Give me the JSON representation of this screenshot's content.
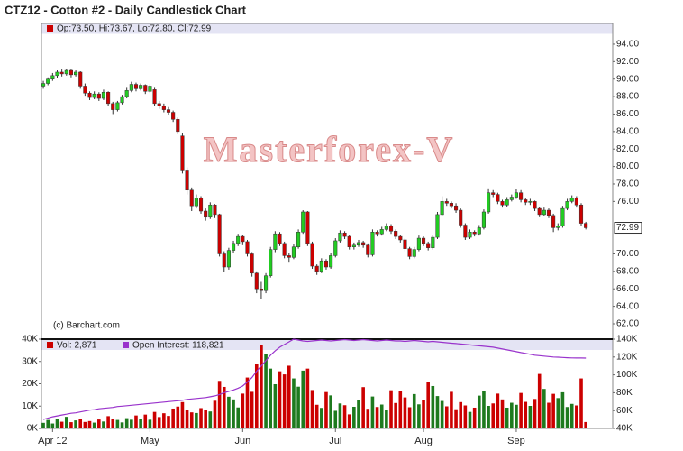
{
  "chart_data": {
    "type": "candlestick",
    "title": "CTZ12 - Cotton #2 - Daily Candlestick Chart",
    "legend": "Op:73.50, Hi:73.67, Lo:72.80, Cl:72.99",
    "credit": "(c) Barchart.com",
    "watermark": "Masterforex-V",
    "colors": {
      "up": "#22cc22",
      "down": "#cc0000",
      "outline": "#333333"
    },
    "xlim": [
      -0.4,
      122.8
    ],
    "xticks": [
      {
        "value": 2,
        "label": "Apr 12"
      },
      {
        "value": 23,
        "label": "May"
      },
      {
        "value": 43,
        "label": "Jun"
      },
      {
        "value": 63,
        "label": "Jul"
      },
      {
        "value": 82,
        "label": "Aug"
      },
      {
        "value": 102,
        "label": "Sep"
      }
    ],
    "ylim": [
      61.07,
      96.37
    ],
    "yticks": [
      {
        "value": 62,
        "label": "62.00"
      },
      {
        "value": 64,
        "label": "64.00"
      },
      {
        "value": 66,
        "label": "66.00"
      },
      {
        "value": 68,
        "label": "68.00"
      },
      {
        "value": 70,
        "label": "70.00"
      },
      {
        "value": 76,
        "label": "76.00"
      },
      {
        "value": 78,
        "label": "78.00"
      },
      {
        "value": 80,
        "label": "80.00"
      },
      {
        "value": 82,
        "label": "82.00"
      },
      {
        "value": 84,
        "label": "84.00"
      },
      {
        "value": 86,
        "label": "86.00"
      },
      {
        "value": 88,
        "label": "88.00"
      },
      {
        "value": 90,
        "label": "90.00"
      },
      {
        "value": 92,
        "label": "92.00"
      },
      {
        "value": 94,
        "label": "94.00"
      }
    ],
    "last_price": {
      "value": 72.99,
      "label": "72.99"
    },
    "ohlc": [
      [
        89.2,
        89.8,
        88.9,
        89.5
      ],
      [
        89.5,
        90.2,
        89.3,
        90.0
      ],
      [
        90.0,
        90.7,
        89.8,
        90.4
      ],
      [
        90.4,
        91.0,
        90.1,
        90.8
      ],
      [
        90.8,
        91.1,
        90.3,
        90.6
      ],
      [
        90.6,
        91.2,
        90.4,
        91.0
      ],
      [
        91.0,
        91.1,
        90.2,
        90.5
      ],
      [
        90.5,
        91.0,
        90.3,
        90.8
      ],
      [
        90.8,
        90.9,
        88.9,
        89.2
      ],
      [
        89.2,
        89.5,
        88.1,
        88.4
      ],
      [
        88.4,
        88.6,
        87.6,
        87.9
      ],
      [
        87.9,
        88.6,
        87.7,
        88.3
      ],
      [
        88.3,
        88.5,
        87.5,
        87.8
      ],
      [
        87.8,
        88.8,
        87.6,
        88.5
      ],
      [
        88.5,
        88.6,
        86.9,
        87.2
      ],
      [
        87.2,
        87.4,
        86.0,
        86.5
      ],
      [
        86.5,
        87.5,
        86.3,
        87.3
      ],
      [
        87.3,
        88.2,
        87.1,
        88.0
      ],
      [
        88.0,
        89.0,
        87.8,
        88.7
      ],
      [
        88.7,
        89.7,
        88.5,
        89.4
      ],
      [
        89.4,
        89.6,
        88.6,
        88.9
      ],
      [
        88.9,
        89.5,
        88.7,
        89.3
      ],
      [
        89.3,
        89.4,
        88.3,
        88.6
      ],
      [
        88.6,
        89.4,
        88.4,
        89.2
      ],
      [
        88.8,
        89.0,
        86.9,
        87.2
      ],
      [
        87.2,
        87.5,
        86.6,
        86.9
      ],
      [
        86.9,
        87.2,
        86.2,
        86.5
      ],
      [
        86.5,
        86.8,
        85.9,
        86.2
      ],
      [
        86.2,
        86.4,
        85.1,
        85.4
      ],
      [
        85.4,
        85.6,
        83.7,
        84.0
      ],
      [
        83.5,
        83.8,
        79.2,
        79.5
      ],
      [
        79.5,
        79.9,
        76.8,
        77.3
      ],
      [
        77.3,
        77.6,
        74.9,
        75.5
      ],
      [
        75.5,
        76.8,
        75.2,
        76.4
      ],
      [
        76.4,
        76.6,
        74.6,
        74.9
      ],
      [
        74.9,
        75.2,
        73.8,
        74.2
      ],
      [
        74.2,
        75.9,
        74.0,
        75.6
      ],
      [
        75.6,
        75.7,
        74.1,
        74.5
      ],
      [
        74.5,
        74.6,
        69.7,
        70.0
      ],
      [
        70.0,
        70.3,
        67.9,
        68.5
      ],
      [
        68.5,
        70.7,
        68.2,
        70.4
      ],
      [
        70.4,
        71.5,
        70.1,
        71.2
      ],
      [
        71.2,
        72.3,
        70.9,
        72.0
      ],
      [
        72.0,
        72.2,
        71.0,
        71.4
      ],
      [
        71.4,
        71.6,
        69.7,
        70.0
      ],
      [
        70.0,
        70.2,
        67.4,
        67.8
      ],
      [
        67.8,
        68.0,
        65.5,
        66.0
      ],
      [
        66.0,
        66.8,
        64.8,
        65.8
      ],
      [
        65.8,
        67.8,
        65.5,
        67.5
      ],
      [
        67.5,
        70.8,
        67.3,
        70.5
      ],
      [
        70.5,
        72.6,
        70.2,
        72.3
      ],
      [
        72.3,
        72.5,
        70.9,
        71.2
      ],
      [
        71.2,
        71.4,
        69.5,
        69.8
      ],
      [
        69.8,
        70.1,
        69.0,
        69.6
      ],
      [
        69.6,
        71.1,
        69.4,
        70.8
      ],
      [
        70.8,
        72.8,
        70.6,
        72.5
      ],
      [
        72.5,
        75.0,
        72.3,
        74.8
      ],
      [
        74.8,
        74.9,
        70.9,
        71.2
      ],
      [
        71.2,
        71.4,
        68.3,
        68.6
      ],
      [
        68.6,
        68.8,
        67.6,
        68.0
      ],
      [
        68.0,
        69.5,
        67.8,
        69.2
      ],
      [
        69.2,
        69.4,
        68.2,
        68.5
      ],
      [
        68.5,
        70.1,
        68.3,
        69.8
      ],
      [
        69.8,
        71.8,
        69.6,
        71.5
      ],
      [
        71.5,
        72.7,
        71.3,
        72.4
      ],
      [
        72.4,
        72.6,
        71.7,
        72.0
      ],
      [
        72.0,
        72.2,
        70.5,
        70.8
      ],
      [
        70.8,
        71.3,
        70.5,
        71.0
      ],
      [
        71.0,
        71.6,
        70.8,
        71.3
      ],
      [
        71.3,
        71.5,
        70.7,
        71.0
      ],
      [
        71.0,
        71.2,
        69.6,
        69.9
      ],
      [
        69.9,
        72.8,
        69.7,
        72.5
      ],
      [
        72.5,
        72.7,
        72.0,
        72.3
      ],
      [
        72.3,
        73.1,
        72.1,
        72.8
      ],
      [
        72.8,
        73.5,
        72.6,
        73.2
      ],
      [
        73.2,
        73.4,
        72.3,
        72.6
      ],
      [
        72.6,
        72.8,
        71.7,
        72.0
      ],
      [
        72.0,
        72.2,
        71.3,
        71.6
      ],
      [
        71.6,
        71.8,
        70.3,
        70.6
      ],
      [
        70.6,
        70.8,
        69.4,
        69.7
      ],
      [
        69.7,
        70.8,
        69.5,
        70.5
      ],
      [
        70.5,
        72.1,
        70.3,
        71.8
      ],
      [
        71.8,
        72.0,
        70.9,
        71.2
      ],
      [
        71.2,
        71.4,
        70.4,
        70.7
      ],
      [
        70.7,
        72.2,
        70.5,
        71.9
      ],
      [
        71.9,
        74.8,
        71.7,
        74.5
      ],
      [
        74.5,
        76.6,
        74.3,
        76.0
      ],
      [
        76.0,
        76.3,
        75.5,
        75.8
      ],
      [
        75.8,
        76.0,
        75.2,
        75.5
      ],
      [
        75.5,
        75.8,
        74.7,
        75.0
      ],
      [
        75.0,
        75.2,
        73.0,
        73.3
      ],
      [
        73.3,
        73.5,
        71.6,
        71.9
      ],
      [
        71.9,
        72.8,
        71.7,
        72.5
      ],
      [
        72.5,
        72.7,
        72.0,
        72.3
      ],
      [
        72.3,
        73.3,
        72.1,
        73.0
      ],
      [
        73.0,
        75.1,
        72.8,
        74.8
      ],
      [
        74.8,
        77.5,
        74.6,
        77.0
      ],
      [
        77.0,
        77.3,
        76.5,
        76.8
      ],
      [
        76.8,
        77.0,
        75.7,
        76.0
      ],
      [
        76.0,
        76.2,
        75.3,
        75.6
      ],
      [
        75.6,
        76.5,
        75.4,
        76.2
      ],
      [
        76.2,
        76.8,
        76.0,
        76.5
      ],
      [
        76.5,
        77.4,
        76.3,
        77.0
      ],
      [
        77.0,
        77.3,
        75.9,
        76.2
      ],
      [
        76.2,
        76.4,
        75.6,
        75.9
      ],
      [
        75.9,
        76.3,
        75.6,
        76.0
      ],
      [
        76.0,
        76.1,
        74.9,
        75.2
      ],
      [
        75.2,
        75.4,
        74.2,
        74.5
      ],
      [
        74.5,
        75.3,
        74.3,
        75.0
      ],
      [
        75.0,
        75.2,
        74.1,
        74.4
      ],
      [
        74.4,
        74.6,
        72.5,
        73.0
      ],
      [
        73.0,
        73.5,
        72.7,
        73.2
      ],
      [
        73.2,
        75.5,
        73.0,
        75.2
      ],
      [
        75.2,
        76.3,
        75.0,
        76.0
      ],
      [
        76.0,
        76.7,
        75.8,
        76.4
      ],
      [
        76.4,
        76.6,
        75.3,
        75.6
      ],
      [
        75.6,
        75.8,
        73.2,
        73.5
      ],
      [
        73.5,
        73.67,
        72.8,
        72.99
      ]
    ],
    "volume": {
      "legend": "Vol: 2,871",
      "colors": {
        "up": "#1e7a1e",
        "down": "#cc0000"
      },
      "ylim": [
        0,
        40000
      ],
      "yticks": [
        {
          "value": 0,
          "label": "0K"
        },
        {
          "value": 10000,
          "label": "10K"
        },
        {
          "value": 20000,
          "label": "20K"
        },
        {
          "value": 30000,
          "label": "30K"
        },
        {
          "value": 40000,
          "label": "40K"
        }
      ],
      "values": [
        2500,
        3800,
        2200,
        4100,
        3000,
        5200,
        2800,
        3600,
        4400,
        2900,
        3300,
        2600,
        4000,
        3100,
        5500,
        4200,
        3800,
        2700,
        4600,
        3900,
        5800,
        4300,
        6200,
        3900,
        7400,
        5100,
        6800,
        5600,
        8900,
        9800,
        11800,
        8400,
        7200,
        6900,
        9100,
        8200,
        7600,
        12400,
        21300,
        18600,
        14200,
        13000,
        9400,
        15600,
        22800,
        16400,
        28900,
        37500,
        33400,
        26800,
        19800,
        25600,
        24200,
        28100,
        22400,
        18700,
        25900,
        26800,
        17200,
        10600,
        9200,
        16300,
        14800,
        7900,
        11200,
        10400,
        6300,
        9700,
        12600,
        18500,
        8800,
        14300,
        9600,
        10700,
        8200,
        17100,
        11400,
        16600,
        13900,
        9500,
        15400,
        10800,
        12800,
        21000,
        19000,
        14500,
        12300,
        9900,
        16400,
        8600,
        11800,
        10300,
        7400,
        9300,
        14700,
        16700,
        10100,
        11200,
        15600,
        13000,
        9300,
        11500,
        10600,
        15900,
        11900,
        10100,
        13200,
        24400,
        17700,
        11500,
        15500,
        13600,
        16200,
        9600,
        11000,
        10300,
        22400,
        2871
      ]
    },
    "open_interest": {
      "legend": "Open Interest: 118,821",
      "color": "#9933cc",
      "y2lim": [
        40000,
        140000
      ],
      "y2ticks": [
        {
          "value": 40000,
          "label": "40K"
        },
        {
          "value": 60000,
          "label": "60K"
        },
        {
          "value": 80000,
          "label": "80K"
        },
        {
          "value": 100000,
          "label": "100K"
        },
        {
          "value": 120000,
          "label": "120K"
        },
        {
          "value": 140000,
          "label": "140K"
        }
      ],
      "values": [
        50000,
        51500,
        53000,
        54000,
        55000,
        56000,
        57000,
        57500,
        58500,
        59500,
        60500,
        61000,
        62000,
        62500,
        63000,
        63500,
        64500,
        65000,
        65500,
        66000,
        66500,
        67000,
        67500,
        68000,
        68500,
        69000,
        69500,
        70000,
        70500,
        71000,
        71500,
        72500,
        73000,
        73500,
        74000,
        74500,
        75500,
        76500,
        78000,
        80000,
        81500,
        83000,
        85000,
        87500,
        92000,
        97000,
        104000,
        110000,
        116000,
        122000,
        127000,
        131000,
        134000,
        137000,
        140000,
        139000,
        138000,
        137500,
        138000,
        138500,
        139000,
        138500,
        138000,
        138500,
        139000,
        139500,
        139000,
        138500,
        139000,
        139500,
        139000,
        138500,
        138000,
        138500,
        139000,
        138500,
        138000,
        138000,
        137500,
        138000,
        138500,
        138000,
        137500,
        137000,
        137500,
        137000,
        136500,
        136000,
        135500,
        135000,
        134500,
        134000,
        133500,
        133000,
        132500,
        132000,
        131500,
        131000,
        130000,
        129000,
        128000,
        127000,
        126000,
        125000,
        124000,
        123000,
        122000,
        121500,
        121000,
        120500,
        120000,
        119800,
        119500,
        119200,
        119000,
        118900,
        118850,
        118821
      ]
    }
  }
}
